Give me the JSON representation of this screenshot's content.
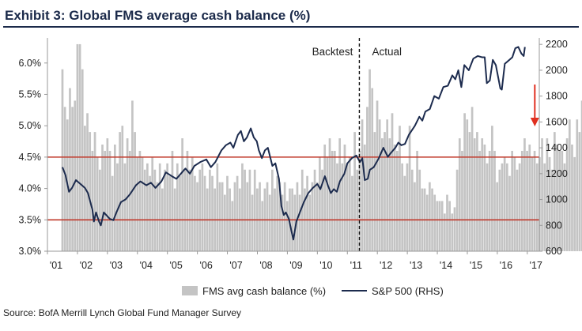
{
  "header": {
    "title": "Exhibit 3: Global FMS average cash balance (%)"
  },
  "footer": {
    "source": "Source: BofA Merrill Lynch Global Fund Manager Survey"
  },
  "chart_data": {
    "type": "bar",
    "title": "Exhibit 3: Global FMS average cash balance (%)",
    "x_tick_labels": [
      "'01",
      "'02",
      "'03",
      "'04",
      "'05",
      "'06",
      "'07",
      "'08",
      "'09",
      "'10",
      "'11",
      "'12",
      "'13",
      "'14",
      "'15",
      "'16",
      "'17"
    ],
    "xlim": [
      2001,
      2017.4
    ],
    "ylim_left": [
      3.0,
      6.4
    ],
    "left_ticks": [
      3.0,
      3.5,
      4.0,
      4.5,
      5.0,
      5.5,
      6.0
    ],
    "left_tick_labels": [
      "3.0%",
      "3.5%",
      "4.0%",
      "4.5%",
      "5.0%",
      "5.5%",
      "6.0%"
    ],
    "ylim_right": [
      600,
      2250
    ],
    "right_ticks": [
      600,
      800,
      1000,
      1200,
      1400,
      1600,
      1800,
      2000,
      2200
    ],
    "right_tick_labels": [
      "600",
      "800",
      "1000",
      "1200",
      "1400",
      "1600",
      "1800",
      "2000",
      "2200"
    ],
    "reference_lines_left": [
      4.5,
      3.5
    ],
    "divider_x": 2011.4,
    "annotations": [
      "Backtest",
      "Actual"
    ],
    "grid": false,
    "legend_position": "bottom",
    "colors": {
      "bars": "#c4c4c4",
      "line": "#1c2b4e",
      "reference": "#c0392b",
      "arrow": "#e03020",
      "title": "#1b2a4a"
    },
    "series": [
      {
        "name": "FMS avg cash balance (%)",
        "kind": "bar",
        "axis": "left",
        "start": 2001.5,
        "step": 0.0833,
        "values": [
          5.9,
          5.3,
          5.1,
          5.6,
          5.3,
          5.4,
          6.3,
          6.3,
          5.9,
          5.0,
          5.2,
          4.9,
          4.6,
          4.9,
          4.5,
          4.3,
          4.7,
          4.6,
          4.8,
          4.6,
          4.2,
          4.7,
          4.4,
          4.9,
          5.0,
          4.4,
          4.8,
          4.6,
          5.4,
          4.9,
          4.5,
          4.6,
          4.5,
          4.3,
          4.4,
          4.2,
          4.5,
          4.3,
          4.1,
          4.4,
          4.0,
          4.3,
          4.4,
          4.2,
          4.6,
          4.0,
          4.4,
          4.2,
          4.8,
          4.3,
          4.6,
          4.3,
          4.5,
          4.2,
          4.1,
          4.3,
          4.4,
          4.2,
          4.0,
          4.3,
          4.2,
          4.0,
          4.4,
          4.1,
          4.1,
          3.9,
          4.2,
          4.0,
          3.8,
          4.1,
          4.2,
          4.0,
          4.4,
          4.3,
          4.1,
          4.3,
          3.9,
          4.3,
          4.0,
          4.1,
          3.8,
          4.0,
          4.1,
          3.9,
          4.3,
          4.0,
          4.2,
          4.1,
          3.9,
          4.1,
          3.8,
          4.0,
          4.0,
          3.9,
          4.1,
          3.9,
          4.3,
          4.0,
          4.2,
          3.9,
          4.1,
          4.3,
          4.1,
          4.5,
          4.3,
          4.7,
          4.5,
          4.8,
          4.6,
          4.6,
          4.4,
          4.8,
          4.4,
          4.7,
          4.4,
          4.5,
          4.2,
          4.9,
          4.3,
          4.6,
          5.1,
          4.7,
          5.3,
          5.9,
          5.6,
          4.9,
          5.4,
          5.1,
          4.8,
          4.9,
          5.1,
          4.8,
          5.2,
          4.7,
          4.6,
          5.0,
          4.4,
          4.2,
          4.4,
          5.0,
          4.3,
          4.1,
          4.6,
          4.3,
          4.0,
          4.0,
          3.9,
          4.1,
          4.0,
          3.9,
          3.8,
          3.8,
          3.8,
          3.6,
          3.9,
          3.8,
          3.6,
          3.7,
          4.3,
          4.8,
          4.6,
          5.2,
          5.1,
          4.9,
          5.3,
          4.8,
          4.9,
          4.6,
          4.8,
          4.7,
          4.4,
          4.6,
          5.0,
          4.6,
          4.1,
          4.3,
          4.4,
          4.5,
          4.4,
          4.2,
          4.6,
          4.5,
          4.3,
          4.4,
          4.6,
          4.8,
          4.6,
          4.7,
          4.5,
          4.6,
          4.4,
          4.5,
          4.8,
          4.4,
          4.8,
          4.5,
          4.3,
          4.9,
          4.7,
          4.6,
          4.6,
          4.4,
          4.8,
          5.1,
          4.7,
          4.5,
          5.1,
          4.9,
          5.4,
          4.8,
          5.5,
          5.1,
          4.7,
          4.9,
          5.4,
          5.6,
          5.2,
          5.4,
          5.8,
          5.3,
          5.6,
          5.1,
          5.5,
          5.8,
          5.0,
          5.0
        ]
      },
      {
        "name": "S&P 500 (RHS)",
        "kind": "line",
        "axis": "right",
        "points": [
          [
            2001.5,
            1250
          ],
          [
            2001.6,
            1190
          ],
          [
            2001.72,
            1060
          ],
          [
            2001.82,
            1090
          ],
          [
            2001.95,
            1150
          ],
          [
            2002.1,
            1120
          ],
          [
            2002.25,
            1090
          ],
          [
            2002.35,
            1050
          ],
          [
            2002.5,
            920
          ],
          [
            2002.55,
            830
          ],
          [
            2002.62,
            900
          ],
          [
            2002.72,
            830
          ],
          [
            2002.78,
            800
          ],
          [
            2002.88,
            900
          ],
          [
            2002.96,
            880
          ],
          [
            2003.08,
            850
          ],
          [
            2003.2,
            840
          ],
          [
            2003.3,
            900
          ],
          [
            2003.45,
            980
          ],
          [
            2003.6,
            1000
          ],
          [
            2003.75,
            1040
          ],
          [
            2003.95,
            1110
          ],
          [
            2004.1,
            1140
          ],
          [
            2004.3,
            1110
          ],
          [
            2004.45,
            1130
          ],
          [
            2004.6,
            1090
          ],
          [
            2004.8,
            1140
          ],
          [
            2004.95,
            1210
          ],
          [
            2005.15,
            1180
          ],
          [
            2005.3,
            1160
          ],
          [
            2005.45,
            1200
          ],
          [
            2005.6,
            1240
          ],
          [
            2005.75,
            1200
          ],
          [
            2005.9,
            1260
          ],
          [
            2006.1,
            1290
          ],
          [
            2006.3,
            1310
          ],
          [
            2006.45,
            1250
          ],
          [
            2006.6,
            1290
          ],
          [
            2006.8,
            1380
          ],
          [
            2006.95,
            1420
          ],
          [
            2007.1,
            1440
          ],
          [
            2007.2,
            1400
          ],
          [
            2007.35,
            1500
          ],
          [
            2007.45,
            1530
          ],
          [
            2007.55,
            1450
          ],
          [
            2007.65,
            1480
          ],
          [
            2007.78,
            1550
          ],
          [
            2007.88,
            1480
          ],
          [
            2007.98,
            1450
          ],
          [
            2008.05,
            1380
          ],
          [
            2008.15,
            1320
          ],
          [
            2008.25,
            1380
          ],
          [
            2008.35,
            1400
          ],
          [
            2008.5,
            1260
          ],
          [
            2008.6,
            1280
          ],
          [
            2008.72,
            1160
          ],
          [
            2008.8,
            950
          ],
          [
            2008.88,
            880
          ],
          [
            2008.95,
            900
          ],
          [
            2009.05,
            850
          ],
          [
            2009.15,
            740
          ],
          [
            2009.2,
            690
          ],
          [
            2009.3,
            830
          ],
          [
            2009.45,
            920
          ],
          [
            2009.55,
            980
          ],
          [
            2009.7,
            1050
          ],
          [
            2009.85,
            1090
          ],
          [
            2010.0,
            1120
          ],
          [
            2010.1,
            1080
          ],
          [
            2010.25,
            1180
          ],
          [
            2010.35,
            1110
          ],
          [
            2010.45,
            1050
          ],
          [
            2010.55,
            1080
          ],
          [
            2010.65,
            1060
          ],
          [
            2010.75,
            1140
          ],
          [
            2010.9,
            1200
          ],
          [
            2011.0,
            1280
          ],
          [
            2011.15,
            1320
          ],
          [
            2011.3,
            1340
          ],
          [
            2011.42,
            1290
          ],
          [
            2011.5,
            1320
          ],
          [
            2011.58,
            1150
          ],
          [
            2011.68,
            1160
          ],
          [
            2011.75,
            1230
          ],
          [
            2011.88,
            1250
          ],
          [
            2012.05,
            1320
          ],
          [
            2012.2,
            1400
          ],
          [
            2012.35,
            1330
          ],
          [
            2012.45,
            1360
          ],
          [
            2012.6,
            1400
          ],
          [
            2012.7,
            1440
          ],
          [
            2012.8,
            1420
          ],
          [
            2012.92,
            1430
          ],
          [
            2013.05,
            1500
          ],
          [
            2013.25,
            1570
          ],
          [
            2013.4,
            1640
          ],
          [
            2013.5,
            1610
          ],
          [
            2013.6,
            1680
          ],
          [
            2013.75,
            1700
          ],
          [
            2013.9,
            1800
          ],
          [
            2014.05,
            1780
          ],
          [
            2014.2,
            1870
          ],
          [
            2014.35,
            1880
          ],
          [
            2014.5,
            1960
          ],
          [
            2014.6,
            1930
          ],
          [
            2014.7,
            2000
          ],
          [
            2014.8,
            1870
          ],
          [
            2014.9,
            2040
          ],
          [
            2015.05,
            2000
          ],
          [
            2015.2,
            2090
          ],
          [
            2015.35,
            2110
          ],
          [
            2015.5,
            2100
          ],
          [
            2015.58,
            2100
          ],
          [
            2015.65,
            1900
          ],
          [
            2015.75,
            1920
          ],
          [
            2015.85,
            2080
          ],
          [
            2015.95,
            2040
          ],
          [
            2016.1,
            1860
          ],
          [
            2016.15,
            1850
          ],
          [
            2016.25,
            2050
          ],
          [
            2016.4,
            2080
          ],
          [
            2016.5,
            2100
          ],
          [
            2016.6,
            2170
          ],
          [
            2016.7,
            2180
          ],
          [
            2016.8,
            2130
          ],
          [
            2016.88,
            2110
          ],
          [
            2016.92,
            2180
          ]
        ]
      }
    ]
  },
  "legend": {
    "bars_label": "FMS avg cash balance (%)",
    "line_label": "S&P 500 (RHS)"
  }
}
